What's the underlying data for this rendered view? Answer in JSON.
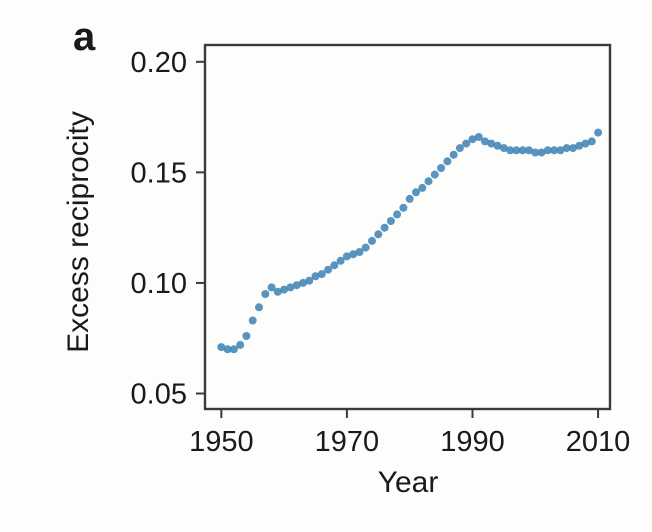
{
  "panel_label": "a",
  "colors": {
    "dot": "#4285b6",
    "axis": "#3a3a3a",
    "text": "#1a1a1a",
    "background": "#fdfdfc"
  },
  "chart_data": {
    "type": "scatter",
    "title": "",
    "xlabel": "Year",
    "ylabel": "Excess reciprocity",
    "grid": false,
    "legend": false,
    "xlim": [
      1947.4,
      2011.9
    ],
    "ylim": [
      0.043,
      0.2076
    ],
    "x_ticks": [
      1950,
      1970,
      1990,
      2010
    ],
    "x_tick_labels": [
      "1950",
      "1970",
      "1990",
      "2010"
    ],
    "y_ticks": [
      0.05,
      0.1,
      0.15,
      0.2
    ],
    "y_tick_labels": [
      "0.05",
      "0.10",
      "0.15",
      "0.20"
    ],
    "series": [
      {
        "name": "excess-reciprocity",
        "x": [
          1950,
          1951,
          1952,
          1953,
          1954,
          1955,
          1956,
          1957,
          1958,
          1959,
          1960,
          1961,
          1962,
          1963,
          1964,
          1965,
          1966,
          1967,
          1968,
          1969,
          1970,
          1971,
          1972,
          1973,
          1974,
          1975,
          1976,
          1977,
          1978,
          1979,
          1980,
          1981,
          1982,
          1983,
          1984,
          1985,
          1986,
          1987,
          1988,
          1989,
          1990,
          1991,
          1992,
          1993,
          1994,
          1995,
          1996,
          1997,
          1998,
          1999,
          2000,
          2001,
          2002,
          2003,
          2004,
          2005,
          2006,
          2007,
          2008,
          2009,
          2010
        ],
        "y": [
          0.071,
          0.07,
          0.07,
          0.072,
          0.076,
          0.083,
          0.089,
          0.095,
          0.098,
          0.096,
          0.097,
          0.098,
          0.099,
          0.1,
          0.101,
          0.103,
          0.104,
          0.106,
          0.108,
          0.11,
          0.112,
          0.113,
          0.114,
          0.116,
          0.119,
          0.122,
          0.125,
          0.128,
          0.131,
          0.134,
          0.138,
          0.141,
          0.143,
          0.146,
          0.149,
          0.152,
          0.155,
          0.158,
          0.161,
          0.163,
          0.165,
          0.166,
          0.164,
          0.163,
          0.162,
          0.161,
          0.16,
          0.16,
          0.16,
          0.16,
          0.159,
          0.159,
          0.16,
          0.16,
          0.16,
          0.161,
          0.161,
          0.162,
          0.163,
          0.164,
          0.168
        ]
      }
    ]
  }
}
